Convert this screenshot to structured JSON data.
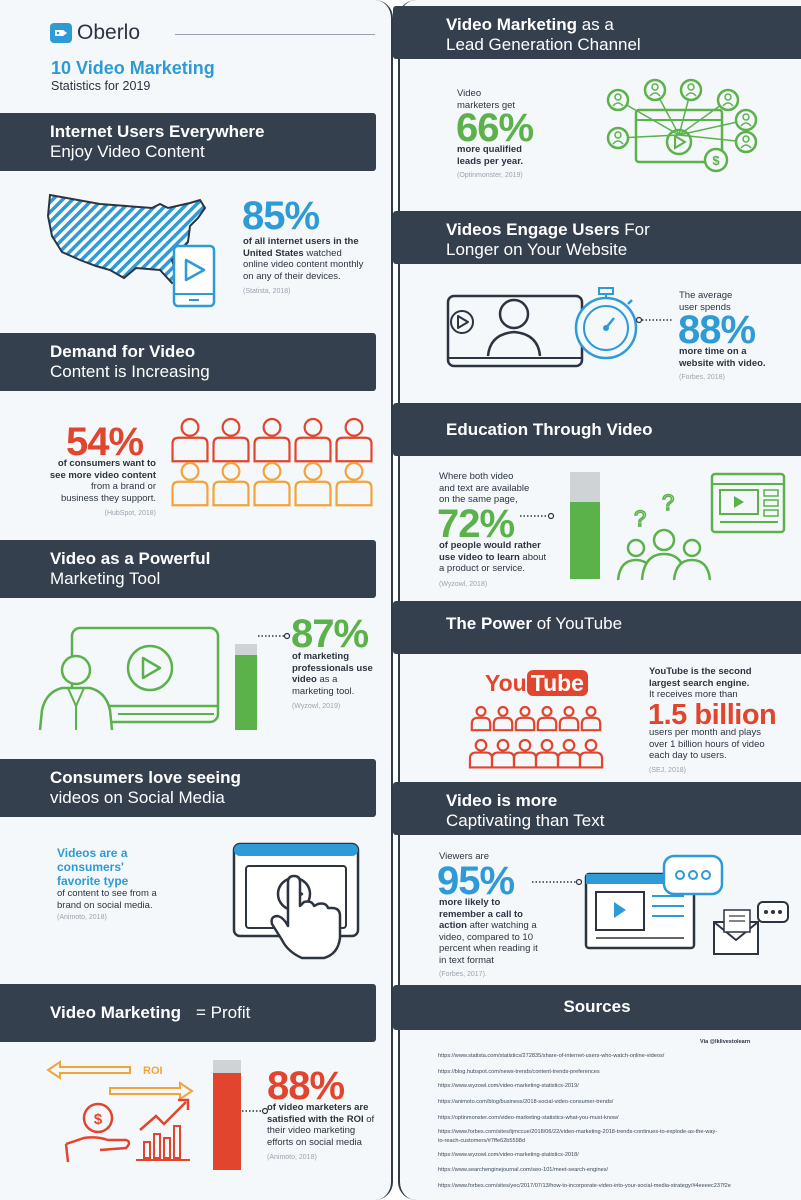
{
  "brand": {
    "name": "Oberlo",
    "title": "10 Video Marketing",
    "subtitle": "Statistics for 2019"
  },
  "colors": {
    "dark": "#35404f",
    "blue": "#2e9ad6",
    "red": "#e2452d",
    "green": "#5bb24a",
    "orange": "#f2a33a",
    "gray": "#cfd3d6"
  },
  "sections": {
    "internet_users": {
      "h1": "Internet Users Everywhere",
      "h2": "Enjoy Video Content",
      "stat": "85%",
      "t1": "of all internet users in the",
      "t2": "United States",
      "t2b": " watched",
      "t3": "online video content monthly",
      "t4": "on any of their devices.",
      "source": "(Statista, 2018)"
    },
    "demand": {
      "h1": "Demand for Video",
      "h2": "Content is Increasing",
      "stat": "54%",
      "t1": "of consumers want to",
      "t2": "see more video content",
      "t3": "from a brand or",
      "t4": "business they support.",
      "source": "(HubSpot, 2018)"
    },
    "marketing_tool": {
      "h1": "Video as a Powerful",
      "h2": "Marketing Tool",
      "stat": "87%",
      "t1": "of marketing",
      "t2": "professionals use",
      "t3": "video",
      "t3b": " as a",
      "t4": "marketing tool.",
      "source": "(Wyzowl, 2019)",
      "bar_fraction": 0.87
    },
    "social": {
      "h1": "Consumers love seeing",
      "h2": "videos on Social Media",
      "t1": "Videos are a",
      "t2": "consumers'",
      "t3": "favorite type",
      "t4": "of content to see from a",
      "t5": "brand on social media.",
      "source": "(Animoto, 2018)"
    },
    "profit": {
      "h1": "Video Marketing",
      "h1b": " = Profit",
      "roi": "ROI",
      "stat": "88%",
      "t1": "of video marketers are",
      "t2": "satisfied with the ROI",
      "t2b": " of",
      "t3": "their video marketing",
      "t4": "efforts on social media",
      "source": "(Animoto, 2018)",
      "bar_fraction": 0.88
    },
    "lead_gen": {
      "h1a": "Video Marketing",
      "h1b": " as a",
      "h2": "Lead Generation Channel",
      "t1": "Video",
      "t2": "marketers get",
      "stat": "66%",
      "t3": "more qualified",
      "t4": "leads per year.",
      "source": "(Optinmonster, 2019)"
    },
    "engage": {
      "h1a": "Videos Engage Users",
      "h1b": " For",
      "h2": "Longer on Your Website",
      "t1": "The average",
      "t2": "user spends",
      "stat": "88%",
      "t3": "more time on a",
      "t4": "website with video.",
      "source": "(Forbes, 2018)"
    },
    "education": {
      "h1": "Education Through Video",
      "t1": "Where both video",
      "t2": "and text are available",
      "t3": "on the same page,",
      "stat": "72%",
      "t4": "of people would rather",
      "t5": "use video to learn",
      "t5b": " about",
      "t6": "a product or service.",
      "source": "(Wyzowl, 2018)",
      "bar_fraction": 0.72
    },
    "youtube": {
      "h1a": "The Power",
      "h1b": " of YouTube",
      "logo_you": "You",
      "logo_tube": "Tube",
      "t1": "YouTube is the second",
      "t2": "largest search engine.",
      "t3": "It receives more than",
      "stat": "1.5 billion",
      "t4": "users per month and plays",
      "t5": "over 1 billion hours of video",
      "t6": "each day to users.",
      "source": "(SEJ, 2018)"
    },
    "captivating": {
      "h1": "Video is more",
      "h2": "Captivating than Text",
      "t1": "Viewers are",
      "stat": "95%",
      "t2": "more likely to",
      "t3": "remember a call to",
      "t4": "action",
      "t4b": " after watching a",
      "t5": "video, compared to 10",
      "t6": "percent when reading it",
      "t7": "in text format",
      "source": "(Forbes, 2017)."
    }
  },
  "sources": {
    "title": "Sources",
    "via": "Via @lklivestolearn",
    "links": [
      "https://www.statista.com/statistics/272835/share-of-internet-users-who-watch-online-videos/",
      "https://blog.hubspot.com/news-trends/content-trends-preferences",
      "https://www.wyzowl.com/video-marketing-statistics-2019/",
      "https://animoto.com/blog/business/2018-social-video-consumer-trends/",
      "https://optinmonster.com/video-marketing-statistics-what-you-must-know/",
      "https://www.forbes.com/sites/tjmccue/2018/06/22/video-marketing-2018-trends-continues-to-explode-as-the-way-",
      "to-reach-customers/#7ffe62b5598d",
      "https://www.wyzowl.com/video-marketing-statistics-2018/",
      "https://www.searchenginejournal.com/seo-101/meet-search-engines/",
      "https://www.forbes.com/sites/yec/2017/07/13/how-to-incorporate-video-into-your-social-media-strategy/#4eeeec237f2e"
    ]
  }
}
